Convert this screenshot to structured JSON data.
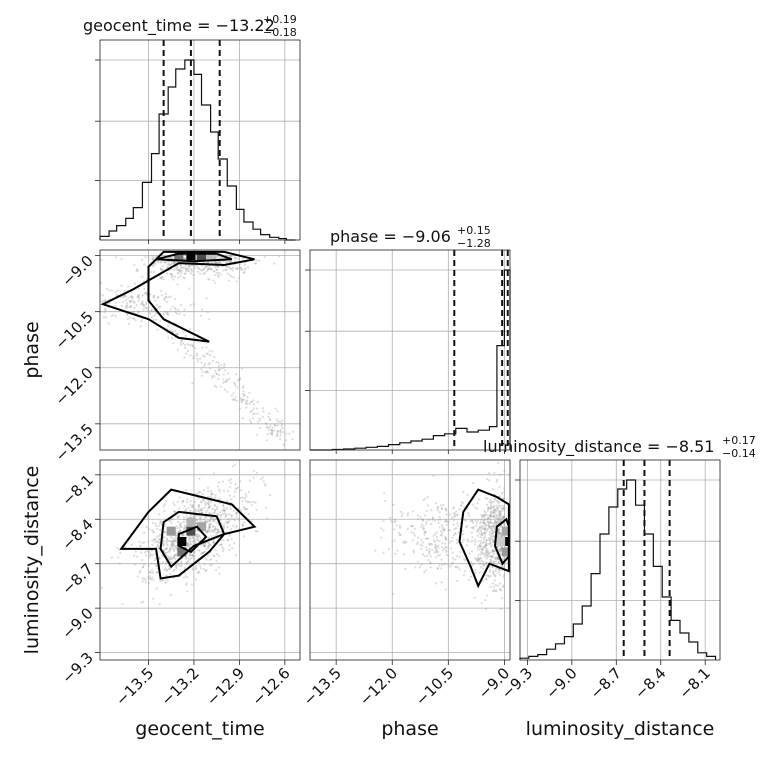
{
  "chart_data": {
    "type": "corner",
    "parameters": [
      "geocent_time",
      "phase",
      "luminosity_distance"
    ],
    "axis_labels": {
      "geocent_time": "geocent_time",
      "phase": "phase",
      "luminosity_distance": "luminosity_distance"
    },
    "ranges": {
      "geocent_time": [
        -13.82,
        -12.5
      ],
      "phase": [
        -14.2,
        -8.85
      ],
      "luminosity_distance": [
        -9.35,
        -8.0
      ]
    },
    "ticks": {
      "geocent_time": [
        "-13.5",
        "-13.2",
        "-12.9",
        "-12.6"
      ],
      "phase": [
        "-13.5",
        "-12.0",
        "-10.5",
        "-9.0"
      ],
      "luminosity_distance": [
        "-9.3",
        "-9.0",
        "-8.7",
        "-8.4",
        "-8.1"
      ]
    },
    "titles": {
      "geocent_time": {
        "main": "geocent_time = −13.22",
        "plus": "+0.19",
        "minus": "−0.18"
      },
      "phase": {
        "main": "phase = −9.06",
        "plus": "+0.15",
        "minus": "−1.28"
      },
      "luminosity_distance": {
        "main": "luminosity_distance = −8.51",
        "plus": "+0.17",
        "minus": "−0.14"
      }
    },
    "quantiles": {
      "geocent_time": [
        -13.4,
        -13.22,
        -13.03
      ],
      "phase": [
        -10.34,
        -9.06,
        -8.91
      ],
      "luminosity_distance": [
        -8.65,
        -8.51,
        -8.34
      ]
    },
    "histograms": {
      "geocent_time": {
        "edges": [
          -13.82,
          -13.76,
          -13.71,
          -13.65,
          -13.6,
          -13.54,
          -13.48,
          -13.43,
          -13.37,
          -13.32,
          -13.26,
          -13.2,
          -13.15,
          -13.09,
          -13.04,
          -12.98,
          -12.92,
          -12.87,
          -12.81,
          -12.76,
          -12.7,
          -12.64,
          -12.59,
          -12.53
        ],
        "counts": [
          2,
          5,
          8,
          12,
          18,
          32,
          48,
          70,
          85,
          95,
          100,
          92,
          75,
          60,
          45,
          30,
          17,
          10,
          6,
          3,
          1.5,
          0.8,
          0
        ]
      },
      "phase": {
        "edges": [
          -14.2,
          -13.9,
          -13.6,
          -13.3,
          -13.0,
          -12.7,
          -12.4,
          -12.1,
          -11.8,
          -11.5,
          -11.2,
          -10.9,
          -10.6,
          -10.3,
          -10.0,
          -9.7,
          -9.4,
          -9.2,
          -9.0,
          -8.85
        ],
        "counts": [
          0,
          0,
          0.3,
          0.6,
          1,
          1.5,
          2,
          3,
          4,
          5,
          6,
          8,
          9,
          12,
          10,
          11,
          13,
          58,
          100
        ]
      },
      "luminosity_distance": {
        "edges": [
          -9.35,
          -9.29,
          -9.23,
          -9.17,
          -9.11,
          -9.05,
          -8.99,
          -8.93,
          -8.87,
          -8.81,
          -8.75,
          -8.69,
          -8.63,
          -8.57,
          -8.51,
          -8.45,
          -8.39,
          -8.33,
          -8.27,
          -8.21,
          -8.15,
          -8.09,
          -8.03
        ],
        "counts": [
          1,
          2,
          3,
          6,
          9,
          13,
          20,
          30,
          48,
          70,
          85,
          95,
          100,
          86,
          70,
          52,
          35,
          22,
          15,
          10,
          4,
          2
        ]
      }
    },
    "densities": {
      "phase_vs_geocent_time": [
        {
          "x": -13.3,
          "y": -9.0,
          "w": 0.55
        },
        {
          "x": -13.22,
          "y": -9.0,
          "w": 1.0
        },
        {
          "x": -13.15,
          "y": -9.0,
          "w": 0.7
        },
        {
          "x": -13.08,
          "y": -9.0,
          "w": 0.25
        }
      ],
      "luminosity_distance_vs_geocent_time": [
        {
          "x": -13.35,
          "y": -8.48,
          "w": 0.4
        },
        {
          "x": -13.28,
          "y": -8.55,
          "w": 1.0
        },
        {
          "x": -13.22,
          "y": -8.48,
          "w": 0.7
        },
        {
          "x": -13.28,
          "y": -8.62,
          "w": 0.55
        },
        {
          "x": -13.22,
          "y": -8.42,
          "w": 0.3
        },
        {
          "x": -13.15,
          "y": -8.45,
          "w": 0.35
        }
      ],
      "luminosity_distance_vs_phase": [
        {
          "x": -8.95,
          "y": -8.55,
          "w": 1.0
        },
        {
          "x": -8.95,
          "y": -8.48,
          "w": 0.35
        },
        {
          "x": -8.95,
          "y": -8.62,
          "w": 0.4
        },
        {
          "x": -9.1,
          "y": -8.55,
          "w": 0.2
        }
      ]
    },
    "grid": true,
    "legend": "none"
  }
}
